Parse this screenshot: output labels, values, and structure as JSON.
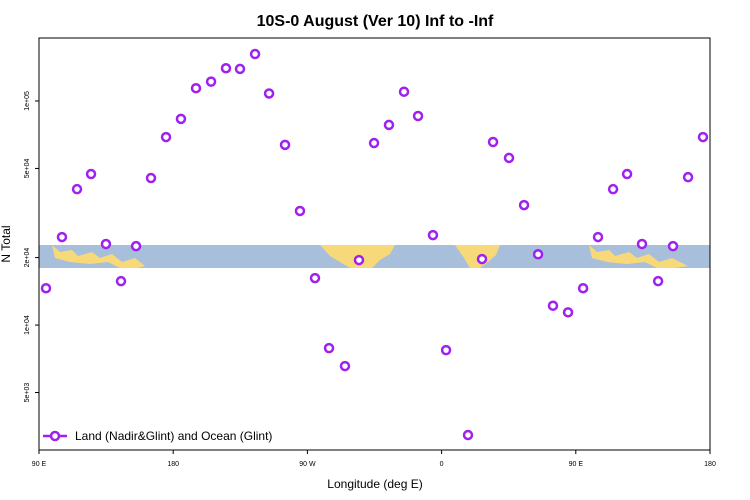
{
  "chart_data": {
    "type": "scatter",
    "title": "10S-0 August (Ver 10)   Inf to -Inf",
    "x_label": "Longitude (deg E)",
    "y_label": "N Total",
    "log_y": true,
    "legend_position": "bottom-left",
    "xlim": [
      90,
      540
    ],
    "xticks": [
      {
        "value": 90,
        "label": "90 E"
      },
      {
        "value": 180,
        "label": "180"
      },
      {
        "value": 270,
        "label": "90 W"
      },
      {
        "value": 360,
        "label": "0"
      },
      {
        "value": 450,
        "label": "90 E"
      },
      {
        "value": 540,
        "label": "180"
      }
    ],
    "ylim": [
      2770,
      191000
    ],
    "yticks": [
      {
        "value": 5000,
        "label": "5e+03"
      },
      {
        "value": 10000,
        "label": "1e+04"
      },
      {
        "value": 20000,
        "label": "2e+04"
      },
      {
        "value": 50000,
        "label": "5e+04"
      },
      {
        "value": 100000,
        "label": "1e+05"
      }
    ],
    "series": [
      {
        "name": "Land (Nadir&Glint) and Ocean (Glint)",
        "color": "#a020f0",
        "x": [
          94.7,
          105.4,
          115.5,
          124.9,
          134.9,
          145.0,
          155.1,
          165.1,
          175.2,
          185.2,
          195.3,
          205.4,
          215.4,
          224.8,
          234.9,
          244.3,
          255.0,
          265.0,
          275.1,
          284.5,
          295.2,
          304.6,
          314.7,
          324.7,
          334.8,
          344.2,
          354.2,
          363.0,
          377.7,
          387.1,
          394.5,
          405.2,
          415.3,
          424.7,
          434.7,
          444.8,
          454.9,
          464.9,
          475.0,
          484.4,
          494.4,
          505.2,
          515.2,
          525.3,
          535.3
        ],
        "values": [
          14600,
          24700,
          40400,
          47200,
          23000,
          15700,
          22500,
          45300,
          69000,
          83200,
          114000,
          122000,
          140000,
          139000,
          162000,
          108000,
          63700,
          32300,
          16200,
          7890,
          6560,
          19500,
          64900,
          78200,
          110000,
          85700,
          25200,
          7730,
          3230,
          19700,
          65600,
          55700,
          34300,
          20700,
          12200,
          11400,
          14600,
          24700,
          40400,
          47200,
          23000,
          15700,
          22500,
          45700,
          69000
        ]
      }
    ]
  }
}
